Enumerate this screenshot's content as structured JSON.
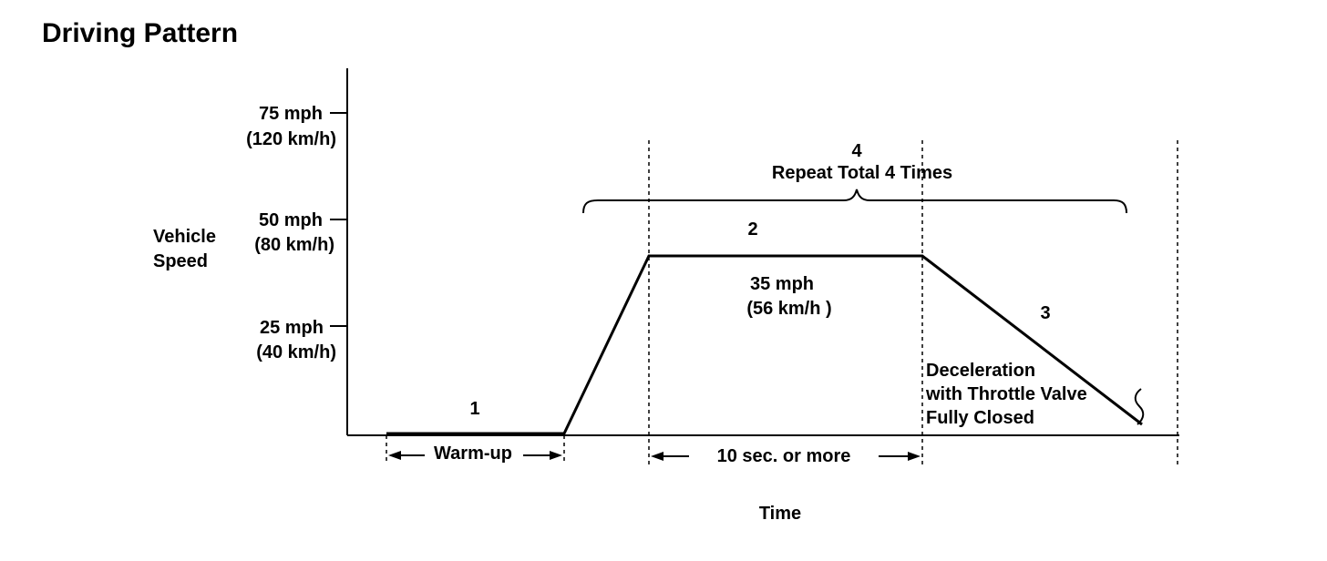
{
  "title": "Driving Pattern",
  "y_axis": {
    "label_line1": "Vehicle",
    "label_line2": "Speed",
    "ticks": [
      {
        "mph": "75 mph",
        "kmh": "(120 km/h)"
      },
      {
        "mph": "50 mph",
        "kmh": "(80 km/h)"
      },
      {
        "mph": "25 mph",
        "kmh": "(40 km/h)"
      }
    ]
  },
  "x_axis": {
    "label": "Time"
  },
  "steps": {
    "step1": {
      "number": "1",
      "label": "Warm-up"
    },
    "step2": {
      "number": "2",
      "speed_mph": "35 mph",
      "speed_kmh": "(56 km/h )",
      "duration": "10 sec. or more"
    },
    "step3": {
      "number": "3",
      "line1": "Deceleration",
      "line2": "with Throttle Valve",
      "line3": "Fully Closed"
    },
    "step4": {
      "number": "4",
      "label": "Repeat Total 4 Times"
    }
  }
}
